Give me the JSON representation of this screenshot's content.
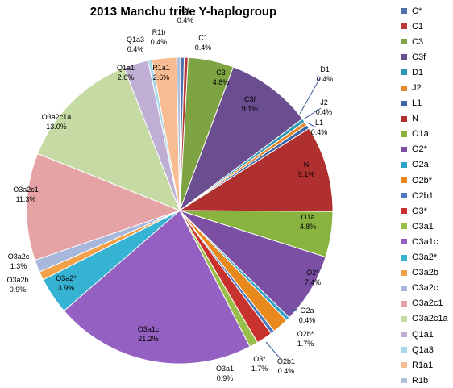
{
  "chart_data": {
    "type": "pie",
    "title": "2013 Manchu tribe Y-haplogroup",
    "slices": [
      {
        "name": "C*",
        "value": 0.4,
        "label": "0.4%",
        "color": "#4F6FA8"
      },
      {
        "name": "C1",
        "value": 0.4,
        "label": "0.4%",
        "color": "#B83A36"
      },
      {
        "name": "C3",
        "value": 4.8,
        "label": "4.8%",
        "color": "#7EA342"
      },
      {
        "name": "C3f",
        "value": 9.1,
        "label": "9.1%",
        "color": "#6A4E90"
      },
      {
        "name": "D1",
        "value": 0.4,
        "label": "0.4%",
        "color": "#2E98B4"
      },
      {
        "name": "J2",
        "value": 0.4,
        "label": "0.4%",
        "color": "#E6892E"
      },
      {
        "name": "L1",
        "value": 0.4,
        "label": "0.4%",
        "color": "#3C66A8"
      },
      {
        "name": "N",
        "value": 9.1,
        "label": "9.1%",
        "color": "#B02F2F"
      },
      {
        "name": "O1a",
        "value": 4.8,
        "label": "4.8%",
        "color": "#87B33E"
      },
      {
        "name": "O2*",
        "value": 7.4,
        "label": "7.4%",
        "color": "#7A4FA4"
      },
      {
        "name": "O2a",
        "value": 0.4,
        "label": "0.4%",
        "color": "#2FA2C8"
      },
      {
        "name": "O2b*",
        "value": 1.7,
        "label": "1.7%",
        "color": "#E8891E"
      },
      {
        "name": "O2b1",
        "value": 0.4,
        "label": "0.4%",
        "color": "#4C7AC0"
      },
      {
        "name": "O3*",
        "value": 1.7,
        "label": "1.7%",
        "color": "#C8322E"
      },
      {
        "name": "O3a1",
        "value": 0.9,
        "label": "0.9%",
        "color": "#99BE4A"
      },
      {
        "name": "O3a1c",
        "value": 21.2,
        "label": "21.2%",
        "color": "#9460C2"
      },
      {
        "name": "O3a2*",
        "value": 3.9,
        "label": "3.9%",
        "color": "#36B2D2"
      },
      {
        "name": "O3a2b",
        "value": 0.9,
        "label": "0.9%",
        "color": "#F3A04A"
      },
      {
        "name": "O3a2c",
        "value": 1.3,
        "label": "1.3%",
        "color": "#A7B8DC"
      },
      {
        "name": "O3a2c1",
        "value": 11.3,
        "label": "11.3%",
        "color": "#E6A3A5"
      },
      {
        "name": "O3a2c1a",
        "value": 13.0,
        "label": "13.0%",
        "color": "#C6DBA4"
      },
      {
        "name": "Q1a1",
        "value": 2.6,
        "label": "2.6%",
        "color": "#BFAFD5"
      },
      {
        "name": "Q1a3",
        "value": 0.4,
        "label": "0.4%",
        "color": "#A8D8E8"
      },
      {
        "name": "R1a1",
        "value": 2.6,
        "label": "2.6%",
        "color": "#F8BC92"
      },
      {
        "name": "R1b",
        "value": 0.4,
        "label": "0.4%",
        "color": "#AEBEDC"
      }
    ],
    "legend_position": "right"
  }
}
